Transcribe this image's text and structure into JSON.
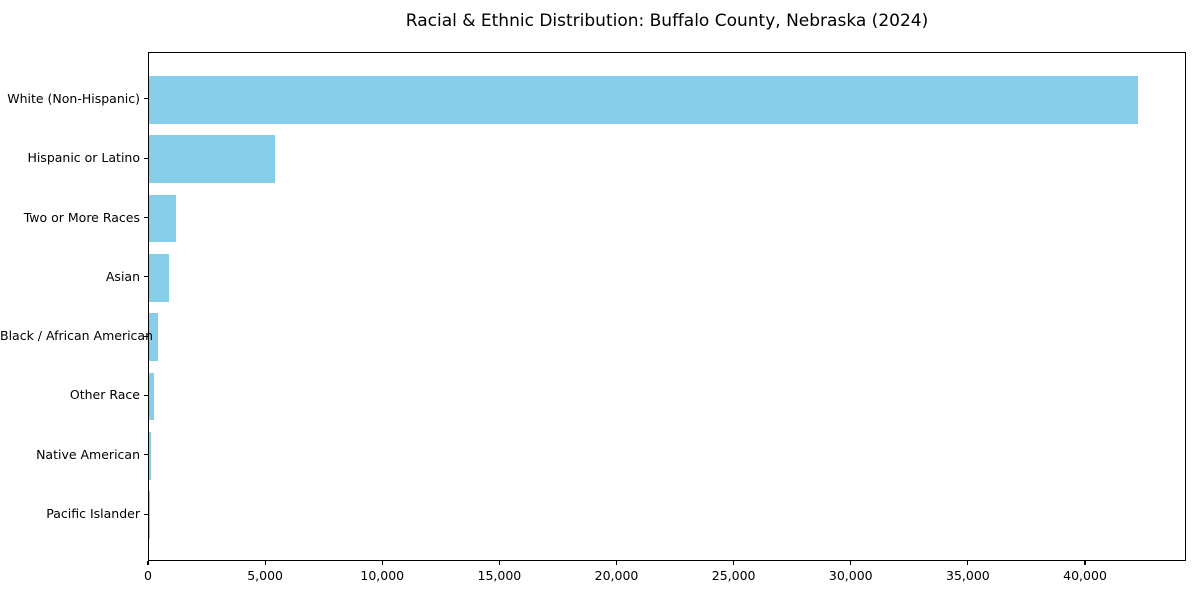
{
  "chart_data": {
    "type": "bar",
    "orientation": "horizontal",
    "title": "Racial & Ethnic Distribution: Buffalo County, Nebraska (2024)",
    "categories": [
      "White (Non-Hispanic)",
      "Hispanic or Latino",
      "Two or More Races",
      "Asian",
      "Black / African American",
      "Other Race",
      "Native American",
      "Pacific Islander"
    ],
    "values": [
      42200,
      5400,
      1160,
      870,
      390,
      230,
      100,
      35
    ],
    "xlabel": "",
    "ylabel": "",
    "xlim": [
      0,
      44310
    ],
    "xticks": [
      0,
      5000,
      10000,
      15000,
      20000,
      25000,
      30000,
      35000,
      40000
    ],
    "xtick_labels": [
      "0",
      "5,000",
      "10,000",
      "15,000",
      "20,000",
      "25,000",
      "30,000",
      "35,000",
      "40,000"
    ],
    "bar_color": "#87CEEB",
    "axis_color": "#000000",
    "text_color": "#000000",
    "background_color": "#ffffff",
    "grid": false,
    "legend": null
  }
}
